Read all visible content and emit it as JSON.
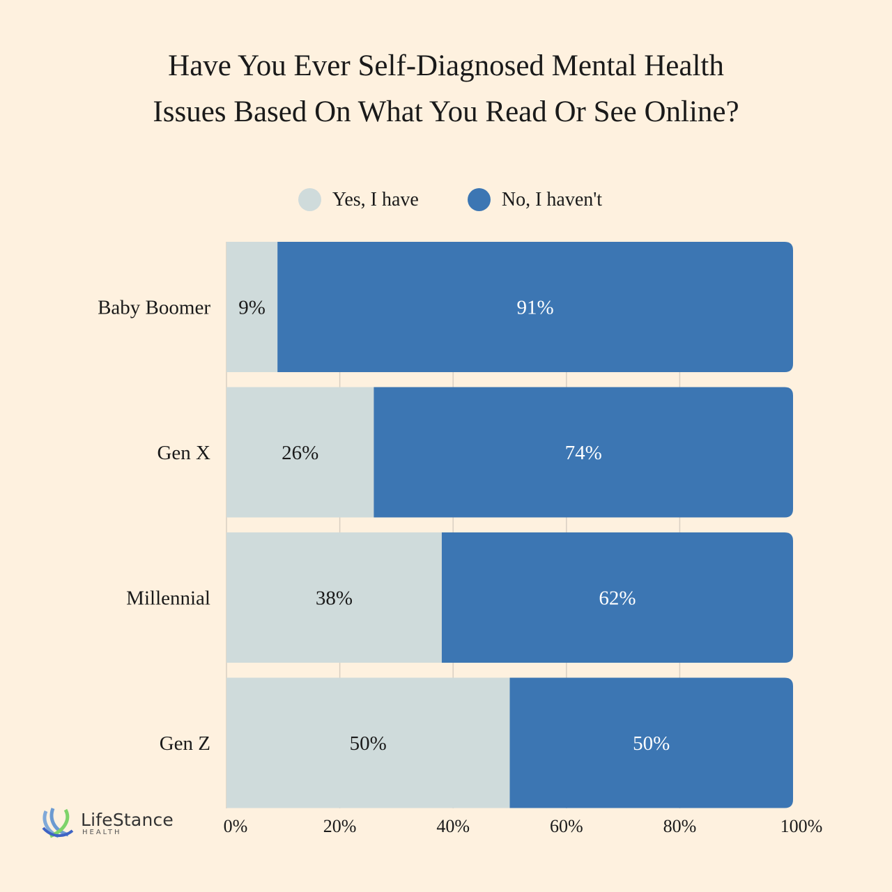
{
  "chart_data": {
    "type": "bar",
    "orientation": "horizontal",
    "stacked": true,
    "title_lines": [
      "Have You Ever Self-Diagnosed Mental Health",
      "Issues Based On What You Read Or See Online?"
    ],
    "categories": [
      "Baby Boomer",
      "Gen X",
      "Millennial",
      "Gen Z"
    ],
    "series": [
      {
        "name": "Yes, I have",
        "color": "#CFDBDB",
        "values": [
          9,
          26,
          38,
          50
        ],
        "labels": [
          "9%",
          "26%",
          "38%",
          "50%"
        ]
      },
      {
        "name": "No, I haven't",
        "color": "#3C76B3",
        "values": [
          91,
          74,
          62,
          50
        ],
        "labels": [
          "91%",
          "74%",
          "62%",
          "50%"
        ]
      }
    ],
    "xlim": [
      0,
      100
    ],
    "xticks": [
      "0%",
      "20%",
      "40%",
      "60%",
      "80%",
      "100%"
    ],
    "grid": true,
    "legend_position": "top"
  },
  "logo": {
    "name": "LifeStance",
    "sub": "HEALTH"
  },
  "colors": {
    "background": "#FEF1DF",
    "grid": "#D9CFC2"
  }
}
